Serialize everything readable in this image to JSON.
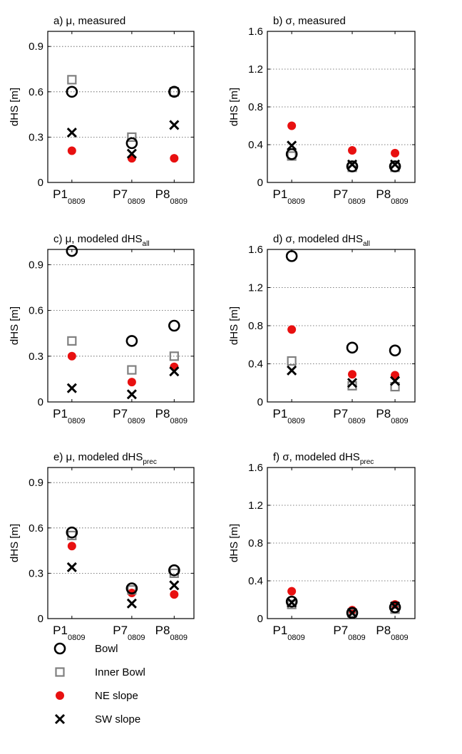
{
  "legend": [
    {
      "key": "bowl",
      "label": "Bowl"
    },
    {
      "key": "inner",
      "label": "Inner Bowl"
    },
    {
      "key": "ne",
      "label": "NE slope"
    },
    {
      "key": "sw",
      "label": "SW slope"
    }
  ],
  "colors": {
    "bowl": "#000000",
    "inner": "#808080",
    "ne": "#e81010",
    "sw": "#000000"
  },
  "chart_data": [
    {
      "type": "scatter",
      "title": "a) μ, measured",
      "title_sub": "",
      "ylabel": "dHS [m]",
      "categories": [
        "P1",
        "P7",
        "P8"
      ],
      "category_sub": "0809",
      "ylim": [
        0,
        1.0
      ],
      "yticks": [
        0,
        0.3,
        0.6,
        0.9
      ],
      "ytick_labels": [
        "0",
        "0.3",
        "0.6",
        "0.9"
      ],
      "grid": "y-dotted",
      "series": [
        {
          "key": "bowl",
          "name": "Bowl",
          "values": [
            0.6,
            0.26,
            0.6
          ]
        },
        {
          "key": "inner",
          "name": "Inner Bowl",
          "values": [
            0.68,
            0.3,
            0.6
          ]
        },
        {
          "key": "ne",
          "name": "NE slope",
          "values": [
            0.21,
            0.16,
            0.16
          ]
        },
        {
          "key": "sw",
          "name": "SW slope",
          "values": [
            0.33,
            0.19,
            0.38
          ]
        }
      ]
    },
    {
      "type": "scatter",
      "title": "b) σ, measured",
      "title_sub": "",
      "ylabel": "dHS [m]",
      "categories": [
        "P1",
        "P7",
        "P8"
      ],
      "category_sub": "0809",
      "ylim": [
        0,
        1.6
      ],
      "yticks": [
        0,
        0.4,
        0.8,
        1.2,
        1.6
      ],
      "ytick_labels": [
        "0",
        "0.4",
        "0.8",
        "1.2",
        "1.6"
      ],
      "grid": "y-dotted",
      "series": [
        {
          "key": "bowl",
          "name": "Bowl",
          "values": [
            0.3,
            0.17,
            0.17
          ]
        },
        {
          "key": "inner",
          "name": "Inner Bowl",
          "values": [
            0.28,
            0.16,
            0.16
          ]
        },
        {
          "key": "ne",
          "name": "NE slope",
          "values": [
            0.6,
            0.34,
            0.31
          ]
        },
        {
          "key": "sw",
          "name": "SW slope",
          "values": [
            0.39,
            0.19,
            0.19
          ]
        }
      ]
    },
    {
      "type": "scatter",
      "title": "c) μ, modeled dHS",
      "title_sub": "all",
      "ylabel": "dHS [m]",
      "categories": [
        "P1",
        "P7",
        "P8"
      ],
      "category_sub": "0809",
      "ylim": [
        0,
        1.0
      ],
      "yticks": [
        0,
        0.3,
        0.6,
        0.9
      ],
      "ytick_labels": [
        "0",
        "0.3",
        "0.6",
        "0.9"
      ],
      "grid": "y-dotted",
      "series": [
        {
          "key": "bowl",
          "name": "Bowl",
          "values": [
            0.99,
            0.4,
            0.5
          ]
        },
        {
          "key": "inner",
          "name": "Inner Bowl",
          "values": [
            0.4,
            0.21,
            0.3
          ]
        },
        {
          "key": "ne",
          "name": "NE slope",
          "values": [
            0.3,
            0.13,
            0.23
          ]
        },
        {
          "key": "sw",
          "name": "SW slope",
          "values": [
            0.09,
            0.05,
            0.2
          ]
        }
      ]
    },
    {
      "type": "scatter",
      "title": "d) σ, modeled dHS",
      "title_sub": "all",
      "ylabel": "dHS [m]",
      "categories": [
        "P1",
        "P7",
        "P8"
      ],
      "category_sub": "0809",
      "ylim": [
        0,
        1.6
      ],
      "yticks": [
        0,
        0.4,
        0.8,
        1.2,
        1.6
      ],
      "ytick_labels": [
        "0",
        "0.4",
        "0.8",
        "1.2",
        "1.6"
      ],
      "grid": "y-dotted",
      "series": [
        {
          "key": "bowl",
          "name": "Bowl",
          "values": [
            1.53,
            0.57,
            0.54
          ]
        },
        {
          "key": "inner",
          "name": "Inner Bowl",
          "values": [
            0.43,
            0.17,
            0.16
          ]
        },
        {
          "key": "ne",
          "name": "NE slope",
          "values": [
            0.76,
            0.29,
            0.28
          ]
        },
        {
          "key": "sw",
          "name": "SW slope",
          "values": [
            0.33,
            0.2,
            0.22
          ]
        }
      ]
    },
    {
      "type": "scatter",
      "title": "e) μ, modeled dHS",
      "title_sub": "prec",
      "ylabel": "dHS [m]",
      "categories": [
        "P1",
        "P7",
        "P8"
      ],
      "category_sub": "0809",
      "ylim": [
        0,
        1.0
      ],
      "yticks": [
        0,
        0.3,
        0.6,
        0.9
      ],
      "ytick_labels": [
        "0",
        "0.3",
        "0.6",
        "0.9"
      ],
      "grid": "y-dotted",
      "series": [
        {
          "key": "bowl",
          "name": "Bowl",
          "values": [
            0.57,
            0.2,
            0.32
          ]
        },
        {
          "key": "inner",
          "name": "Inner Bowl",
          "values": [
            0.55,
            0.19,
            0.3
          ]
        },
        {
          "key": "ne",
          "name": "NE slope",
          "values": [
            0.48,
            0.17,
            0.16
          ]
        },
        {
          "key": "sw",
          "name": "SW slope",
          "values": [
            0.34,
            0.1,
            0.22
          ]
        }
      ]
    },
    {
      "type": "scatter",
      "title": "f) σ, modeled dHS",
      "title_sub": "prec",
      "ylabel": "dHS [m]",
      "categories": [
        "P1",
        "P7",
        "P8"
      ],
      "category_sub": "0809",
      "ylim": [
        0,
        1.6
      ],
      "yticks": [
        0,
        0.4,
        0.8,
        1.2,
        1.6
      ],
      "ytick_labels": [
        "0",
        "0.4",
        "0.8",
        "1.2",
        "1.6"
      ],
      "grid": "y-dotted",
      "series": [
        {
          "key": "bowl",
          "name": "Bowl",
          "values": [
            0.18,
            0.06,
            0.12
          ]
        },
        {
          "key": "inner",
          "name": "Inner Bowl",
          "values": [
            0.15,
            0.06,
            0.1
          ]
        },
        {
          "key": "ne",
          "name": "NE slope",
          "values": [
            0.29,
            0.09,
            0.15
          ]
        },
        {
          "key": "sw",
          "name": "SW slope",
          "values": [
            0.17,
            0.06,
            0.13
          ]
        }
      ]
    }
  ]
}
